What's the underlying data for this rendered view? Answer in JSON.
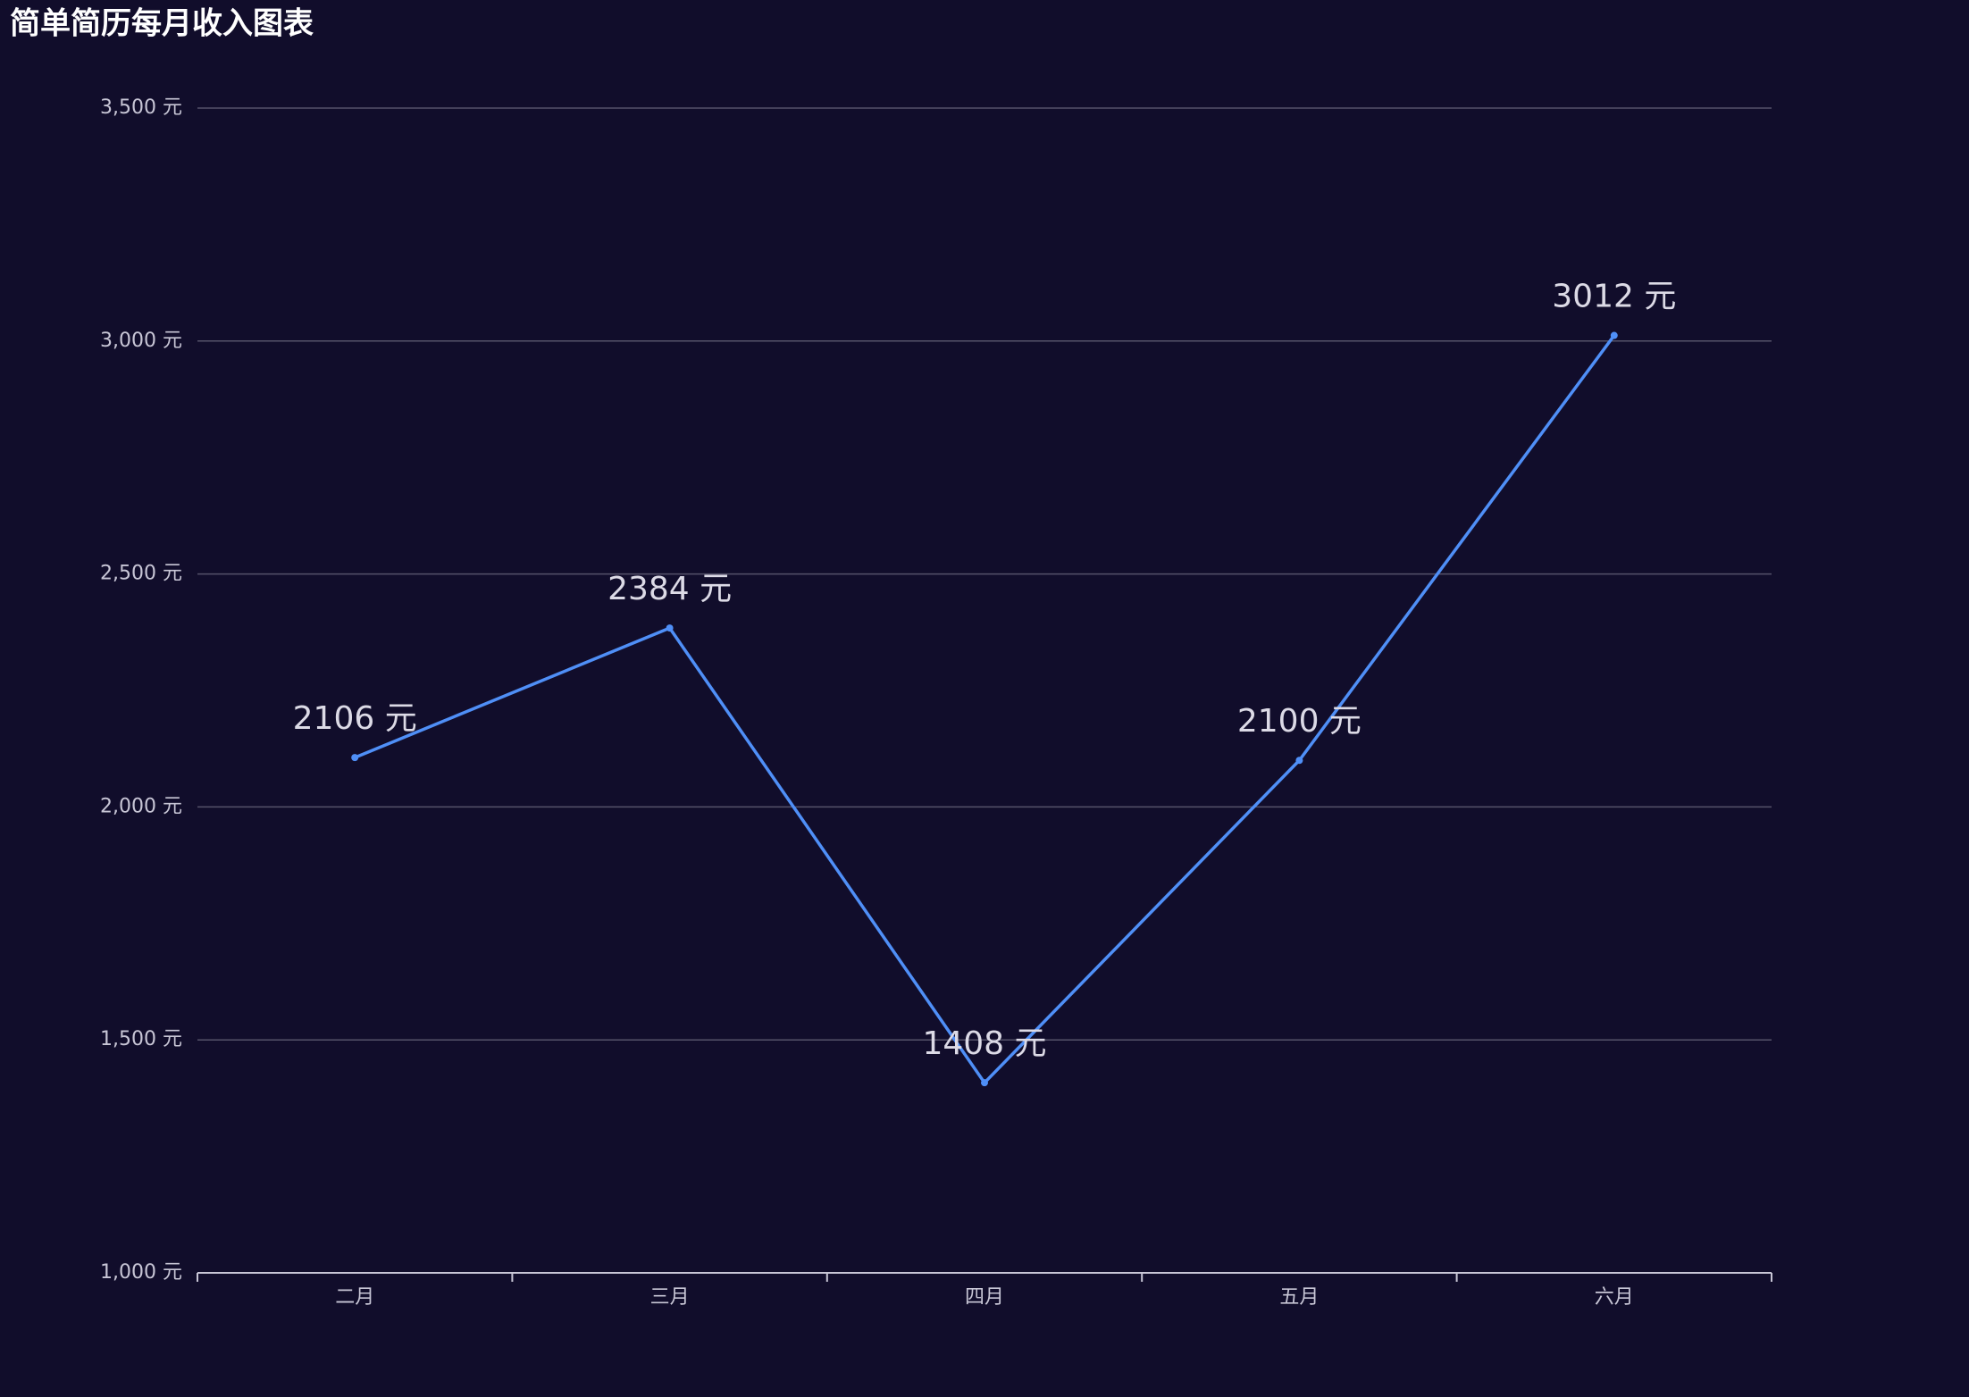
{
  "chart_data": {
    "type": "line",
    "title": "简单简历每月收入图表",
    "categories": [
      "二月",
      "三月",
      "四月",
      "五月",
      "六月"
    ],
    "values": [
      2106,
      2384,
      1408,
      2100,
      3012
    ],
    "value_labels": [
      "2106 元",
      "2384 元",
      "1408 元",
      "2100 元",
      "3012 元"
    ],
    "color": "#4f8ff7",
    "ylim": [
      1000,
      3500
    ],
    "yticks": [
      {
        "value": 1000,
        "label": "1,000 元"
      },
      {
        "value": 1500,
        "label": "1,500 元"
      },
      {
        "value": 2000,
        "label": "2,000 元"
      },
      {
        "value": 2500,
        "label": "2,500 元"
      },
      {
        "value": 3000,
        "label": "3,000 元"
      },
      {
        "value": 3500,
        "label": "3,500 元"
      }
    ],
    "grid": true
  }
}
